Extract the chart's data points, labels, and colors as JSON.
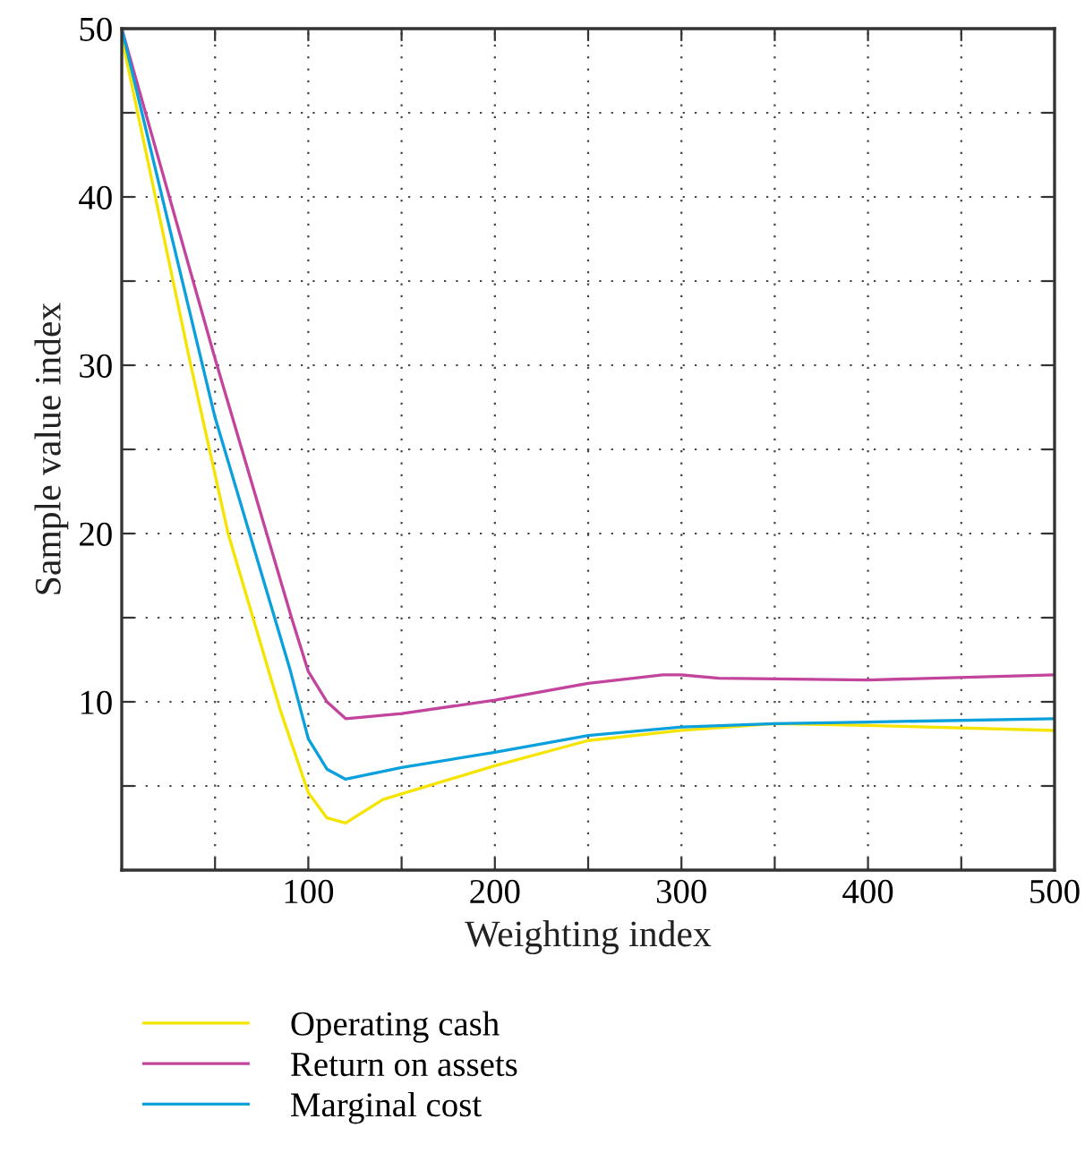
{
  "chart_data": {
    "type": "line",
    "xlabel": "Weighting index",
    "ylabel": "Sample value index",
    "xlim": [
      0,
      500
    ],
    "ylim": [
      0,
      50
    ],
    "xticks": [
      {
        "value": 50,
        "label": null
      },
      100,
      {
        "value": 150,
        "label": null
      },
      200,
      {
        "value": 250,
        "label": null
      },
      300,
      {
        "value": 350,
        "label": null
      },
      400,
      {
        "value": 450,
        "label": null
      },
      500
    ],
    "yticks": [
      {
        "value": 5,
        "label": null
      },
      10,
      {
        "value": 15,
        "label": null
      },
      20,
      {
        "value": 25,
        "label": null
      },
      30,
      {
        "value": 35,
        "label": null
      },
      40,
      {
        "value": 45,
        "label": null
      },
      50
    ],
    "grid": true,
    "legend": "bottom",
    "marker": "none",
    "line_style": "solid",
    "series": [
      {
        "name": "Operating cash",
        "color": "#f5e400",
        "x": [
          0,
          37,
          57,
          85,
          100,
          110,
          120,
          140,
          200,
          250,
          300,
          350,
          400,
          500
        ],
        "values": [
          49.5,
          30,
          20,
          9.5,
          4.6,
          3.1,
          2.8,
          4.2,
          6.2,
          7.7,
          8.3,
          8.7,
          8.6,
          8.3
        ]
      },
      {
        "name": "Return on assets",
        "color": "#c2449c",
        "x": [
          0,
          50,
          91,
          100,
          110,
          120,
          150,
          200,
          250,
          290,
          300,
          320,
          400,
          500
        ],
        "values": [
          50,
          30.4,
          15,
          11.8,
          10,
          9,
          9.3,
          10.1,
          11.1,
          11.6,
          11.6,
          11.4,
          11.3,
          11.6
        ]
      },
      {
        "name": "Marginal cost",
        "color": "#0aa0dc",
        "x": [
          0,
          50,
          90,
          100,
          110,
          120,
          150,
          200,
          250,
          300,
          350,
          400,
          500
        ],
        "values": [
          50,
          26.9,
          12,
          7.8,
          6,
          5.4,
          6.1,
          7,
          8,
          8.5,
          8.7,
          8.8,
          9
        ]
      }
    ]
  }
}
